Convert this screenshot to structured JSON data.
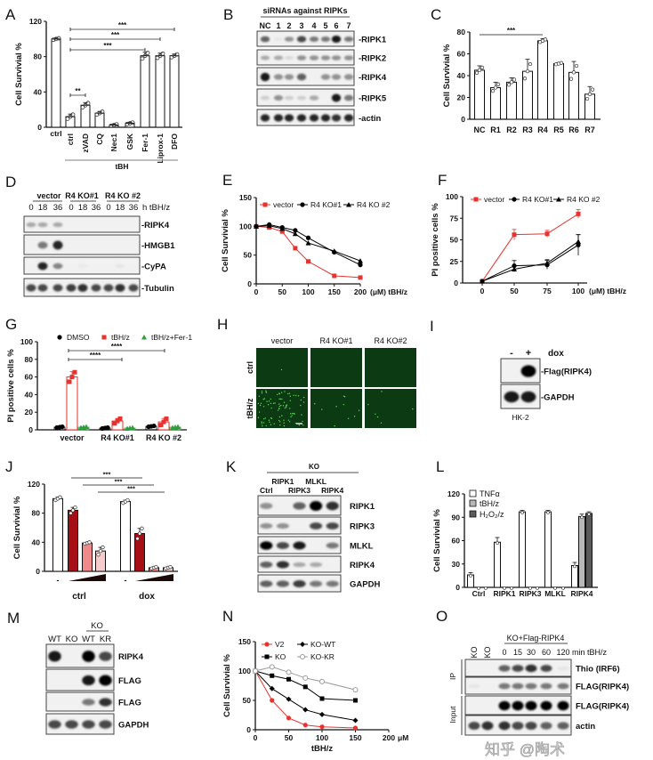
{
  "panel_labels": [
    "A",
    "B",
    "C",
    "D",
    "E",
    "F",
    "G",
    "H",
    "I",
    "J",
    "K",
    "L",
    "M",
    "N",
    "O"
  ],
  "chart_data": [
    {
      "id": "A",
      "type": "bar",
      "ylabel": "Cell Survivial %",
      "ylim": [
        0,
        120
      ],
      "yticks": [
        0,
        40,
        80,
        120
      ],
      "categories": [
        "ctrl",
        "ctrl",
        "zVAD",
        "CQ",
        "Nec1",
        "GSK",
        "Fer-1",
        "Liprox-1",
        "DFO"
      ],
      "values": [
        100,
        12,
        25,
        16,
        2.5,
        4.5,
        81,
        81,
        81
      ],
      "errors": [
        1,
        3,
        3,
        2,
        1,
        1,
        4,
        3,
        2
      ],
      "group_label": "tBH",
      "significance": [
        {
          "from": 1,
          "to": 8,
          "label": "***"
        },
        {
          "from": 1,
          "to": 7,
          "label": "***"
        },
        {
          "from": 1,
          "to": 6,
          "label": "***"
        },
        {
          "from": 1,
          "to": 2,
          "label": "**"
        }
      ],
      "bar_color": "#ffffff"
    },
    {
      "id": "C",
      "type": "bar",
      "ylabel": "Cell Survivial %",
      "ylim": [
        0,
        80
      ],
      "yticks": [
        0,
        20,
        40,
        60,
        80
      ],
      "categories": [
        "NC",
        "R1",
        "R2",
        "R3",
        "R4",
        "R5",
        "R6",
        "R7"
      ],
      "values": [
        45,
        29,
        34,
        44,
        72,
        51,
        43,
        23
      ],
      "errors": [
        4,
        5,
        4,
        11,
        2,
        1,
        10,
        7
      ],
      "significance": [
        {
          "from": 0,
          "to": 4,
          "label": "***"
        }
      ],
      "bar_color": "#ffffff"
    },
    {
      "id": "E",
      "type": "line",
      "ylabel": "Cell Survivial %",
      "ylim": [
        0,
        150
      ],
      "yticks": [
        0,
        50,
        100,
        150
      ],
      "xlim": [
        0,
        200
      ],
      "xticks": [
        0,
        50,
        100,
        150,
        200
      ],
      "xunit": "(μM) tBH/z",
      "x": [
        0,
        25,
        50,
        75,
        100,
        150,
        200
      ],
      "series": [
        {
          "name": "vector",
          "values": [
            100,
            98,
            91,
            62,
            39,
            14,
            11
          ],
          "color": "#e8322e",
          "marker": "square"
        },
        {
          "name": "R4 KO#1",
          "values": [
            100,
            103,
            98,
            93,
            80,
            55,
            33
          ],
          "color": "#000000",
          "marker": "circle"
        },
        {
          "name": "R4 KO #2",
          "values": [
            100,
            101,
            96,
            87,
            71,
            57,
            40
          ],
          "color": "#000000",
          "marker": "triangle"
        }
      ]
    },
    {
      "id": "F",
      "type": "line",
      "ylabel": "PI positive cells %",
      "ylim": [
        0,
        100
      ],
      "yticks": [
        0,
        25,
        50,
        75,
        100
      ],
      "xticks": [
        0,
        50,
        75,
        100
      ],
      "xunit": "(μM) tBH/z",
      "x": [
        0,
        50,
        75,
        100
      ],
      "series": [
        {
          "name": "vector",
          "values": [
            2,
            56,
            57,
            80
          ],
          "errors": [
            1,
            6,
            4,
            5
          ],
          "color": "#e8322e",
          "marker": "square"
        },
        {
          "name": "R4 KO#1",
          "values": [
            2,
            20,
            21,
            44
          ],
          "errors": [
            1,
            6,
            5,
            12
          ],
          "color": "#000000",
          "marker": "circle"
        },
        {
          "name": "R4 KO #2",
          "values": [
            2,
            16,
            23,
            48
          ],
          "errors": [
            1,
            3,
            4,
            8
          ],
          "color": "#000000",
          "marker": "triangle"
        }
      ]
    },
    {
      "id": "G",
      "type": "bar",
      "ylabel": "PI positive cells %",
      "ylim": [
        0,
        100
      ],
      "yticks": [
        0,
        20,
        40,
        60,
        80,
        100
      ],
      "categories": [
        "vector",
        "R4 KO#1",
        "R4 KO #2"
      ],
      "series": [
        {
          "name": "DMSO",
          "values": [
            3,
            2,
            4
          ],
          "color": "#000000",
          "marker": "circle"
        },
        {
          "name": "tBH/z",
          "values": [
            60,
            10,
            9
          ],
          "errors": [
            6,
            3,
            4
          ],
          "color": "#e8322e",
          "marker": "square"
        },
        {
          "name": "tBH/z+Fer-1",
          "values": [
            3,
            2,
            3
          ],
          "color": "#2e9e3a",
          "marker": "triangle"
        }
      ],
      "significance": [
        {
          "from": "vector",
          "to": "R4 KO #2",
          "label": "****"
        },
        {
          "from": "vector",
          "to": "R4 KO#1",
          "label": "****"
        }
      ]
    },
    {
      "id": "J",
      "type": "bar",
      "ylabel": "Cell Survivial %",
      "ylim": [
        0,
        120
      ],
      "yticks": [
        0,
        40,
        80,
        120
      ],
      "categories": [
        "ctrl",
        "dox"
      ],
      "untreated_label": "-",
      "series": [
        {
          "values": [
            100,
            96
          ],
          "errors": [
            2,
            2
          ],
          "color": "#ffffff"
        },
        {
          "values": [
            84,
            52
          ],
          "errors": [
            4,
            7
          ],
          "color": "#a50f15"
        },
        {
          "values": [
            39,
            5
          ],
          "errors": [
            1,
            1
          ],
          "color": "#f08a8a"
        },
        {
          "values": [
            28,
            5
          ],
          "errors": [
            5,
            1
          ],
          "color": "#f7cccc"
        }
      ],
      "significance": [
        {
          "label": "***"
        },
        {
          "label": "***"
        },
        {
          "label": "***"
        }
      ]
    },
    {
      "id": "L",
      "type": "bar",
      "ylabel": "Cell Survivial %",
      "ylim": [
        0,
        120
      ],
      "yticks": [
        0,
        30,
        60,
        90,
        120
      ],
      "categories": [
        "Ctrl",
        "RIPK1",
        "RIPK3",
        "MLKL",
        "RIPK4"
      ],
      "series": [
        {
          "name": "TNFα",
          "values": [
            16,
            58,
            97,
            97,
            28
          ],
          "errors": [
            3,
            6,
            2,
            2,
            4
          ],
          "color": "#ffffff"
        },
        {
          "name": "tBH/z",
          "values": [
            0,
            0,
            0,
            0,
            91
          ],
          "errors": [
            0,
            0,
            0,
            0,
            3
          ],
          "color": "#b8b8b8"
        },
        {
          "name": "H₂O₂/z",
          "values": [
            0,
            0,
            0,
            0,
            95
          ],
          "errors": [
            0,
            0,
            0,
            0,
            2
          ],
          "color": "#5a5a5a"
        }
      ]
    },
    {
      "id": "N",
      "type": "line",
      "ylabel": "Cell Survivial %",
      "ylim": [
        0,
        150
      ],
      "yticks": [
        0,
        50,
        100,
        150
      ],
      "xlim": [
        0,
        200
      ],
      "xticks": [
        0,
        50,
        100,
        150,
        200
      ],
      "xunit": "μM",
      "xlabel": "tBH/z",
      "x": [
        0,
        25,
        50,
        75,
        100,
        150
      ],
      "series": [
        {
          "name": "V2",
          "values": [
            100,
            50,
            20,
            8,
            5,
            3
          ],
          "color": "#e8322e",
          "marker": "circle"
        },
        {
          "name": "KO",
          "values": [
            100,
            92,
            86,
            73,
            53,
            50
          ],
          "color": "#000000",
          "marker": "square"
        },
        {
          "name": "KO-WT",
          "values": [
            100,
            70,
            52,
            34,
            26,
            16
          ],
          "color": "#000000",
          "marker": "diamond"
        },
        {
          "name": "KO-KR",
          "values": [
            100,
            107,
            98,
            88,
            82,
            68
          ],
          "color": "#9a9a9a",
          "marker": "open-circle"
        }
      ]
    }
  ],
  "blots": {
    "B": {
      "header": "siRNAs against RIPKs",
      "lanes": [
        "NC",
        "1",
        "2",
        "3",
        "4",
        "5",
        "6",
        "7"
      ],
      "rows": [
        {
          "label": "-RIPK1",
          "bands": [
            0.6,
            0.05,
            0.4,
            0.7,
            0.5,
            0.5,
            0.9,
            0.5
          ]
        },
        {
          "label": "-RIPK2",
          "bands": [
            0.3,
            0.3,
            0.1,
            0.4,
            0.4,
            0.4,
            0.4,
            0.4
          ]
        },
        {
          "label": "-RIPK4",
          "bands": [
            0.9,
            0.4,
            0.4,
            0.6,
            0,
            0.4,
            0.4,
            0.4
          ]
        },
        {
          "label": "-RIPK5",
          "bands": [
            0.15,
            0.4,
            0.15,
            0.15,
            0.3,
            0,
            0.9,
            0.5
          ]
        },
        {
          "label": "-actin",
          "bands": [
            0.85,
            0.85,
            0.85,
            0.85,
            0.85,
            0.85,
            0.8,
            0.85
          ]
        }
      ]
    },
    "D": {
      "groups": [
        "vector",
        "R4 KO#1",
        "R4 KO #2"
      ],
      "lanes": [
        "0",
        "18",
        "36",
        "0",
        "18",
        "36",
        "0",
        "18",
        "36"
      ],
      "lane_suffix": "h tBH/z",
      "rows": [
        {
          "label": "-RIPK4",
          "bands": [
            0.3,
            0.3,
            0.3,
            0,
            0,
            0,
            0,
            0,
            0
          ]
        },
        {
          "label": "-HMGB1",
          "bands": [
            0,
            0.5,
            0.85,
            0,
            0,
            0,
            0,
            0,
            0
          ]
        },
        {
          "label": "-CyPA",
          "bands": [
            0,
            0.85,
            0.45,
            0,
            0.03,
            0,
            0,
            0.05,
            0
          ]
        },
        {
          "label": "-Tubulin",
          "bands": [
            0.7,
            0.7,
            0.7,
            0.75,
            0.8,
            0.7,
            0.7,
            0.8,
            0.7
          ]
        }
      ]
    },
    "I": {
      "lanes": [
        "-",
        "+"
      ],
      "condition": "dox",
      "footer": "HK-2",
      "rows": [
        {
          "label": "-Flag(RIPK4)",
          "bands": [
            0,
            1
          ]
        },
        {
          "label": "-GAPDH",
          "bands": [
            0.9,
            0.9
          ]
        }
      ]
    },
    "K": {
      "header": "KO",
      "lanes": [
        "Ctrl",
        "RIPK1",
        "RIPK3",
        "MLKL",
        "RIPK4"
      ],
      "rows": [
        {
          "label": "RIPK1",
          "bands": [
            0.4,
            0,
            0.6,
            1,
            0.8
          ]
        },
        {
          "label": "RIPK3",
          "bands": [
            0.4,
            0.4,
            0,
            0.7,
            0.7
          ]
        },
        {
          "label": "MLKL",
          "bands": [
            1,
            0.7,
            0.9,
            0,
            0.5
          ]
        },
        {
          "label": "RIPK4",
          "bands": [
            0.6,
            0.8,
            0.3,
            0.3,
            0
          ]
        },
        {
          "label": "GAPDH",
          "bands": [
            0.6,
            0.6,
            0.75,
            0.5,
            0.5
          ]
        }
      ]
    },
    "M": {
      "header": "KO",
      "lanes": [
        "WT",
        "KO",
        "WT",
        "KR"
      ],
      "rows": [
        {
          "label": "RIPK4",
          "bands": [
            0.9,
            0,
            1,
            0.7
          ]
        },
        {
          "label": "FLAG",
          "bands": [
            0,
            0,
            0.9,
            1
          ]
        },
        {
          "label": "FLAG",
          "bands": [
            0,
            0,
            0.5,
            0.8
          ]
        },
        {
          "label": "GAPDH",
          "bands": [
            0.7,
            0.7,
            0.7,
            0.7
          ]
        }
      ]
    },
    "O": {
      "header": "KO+Flag-RIPK4",
      "lanes": [
        "KO",
        "KO",
        "0",
        "15",
        "30",
        "60",
        "120"
      ],
      "lane_suffix": "min tBH/z",
      "sections": [
        "IP",
        "Input"
      ],
      "rows": [
        {
          "label": "Thio (IRF6)",
          "bands": [
            0,
            0,
            0.6,
            0.7,
            0.8,
            0.7,
            0.05
          ]
        },
        {
          "label": "FLAG(RIPK4)",
          "bands": [
            0.05,
            0,
            0.5,
            0.5,
            0.5,
            0.5,
            0.5
          ]
        },
        {
          "label": "FLAG(RIPK4)",
          "bands": [
            0,
            0,
            1,
            1,
            1,
            1,
            1
          ]
        },
        {
          "label": "actin",
          "bands": [
            0.7,
            0.8,
            0.8,
            0.7,
            0.7,
            0.6,
            0.6
          ]
        }
      ]
    }
  },
  "micrographs": {
    "columns": [
      "vector",
      "R4 KO#1",
      "R4 KO#2"
    ],
    "rows": [
      "ctrl",
      "tBH/z"
    ],
    "background": "#0c3a12",
    "signal_color": "#5fd35f"
  },
  "watermark": "知乎 @陶术"
}
